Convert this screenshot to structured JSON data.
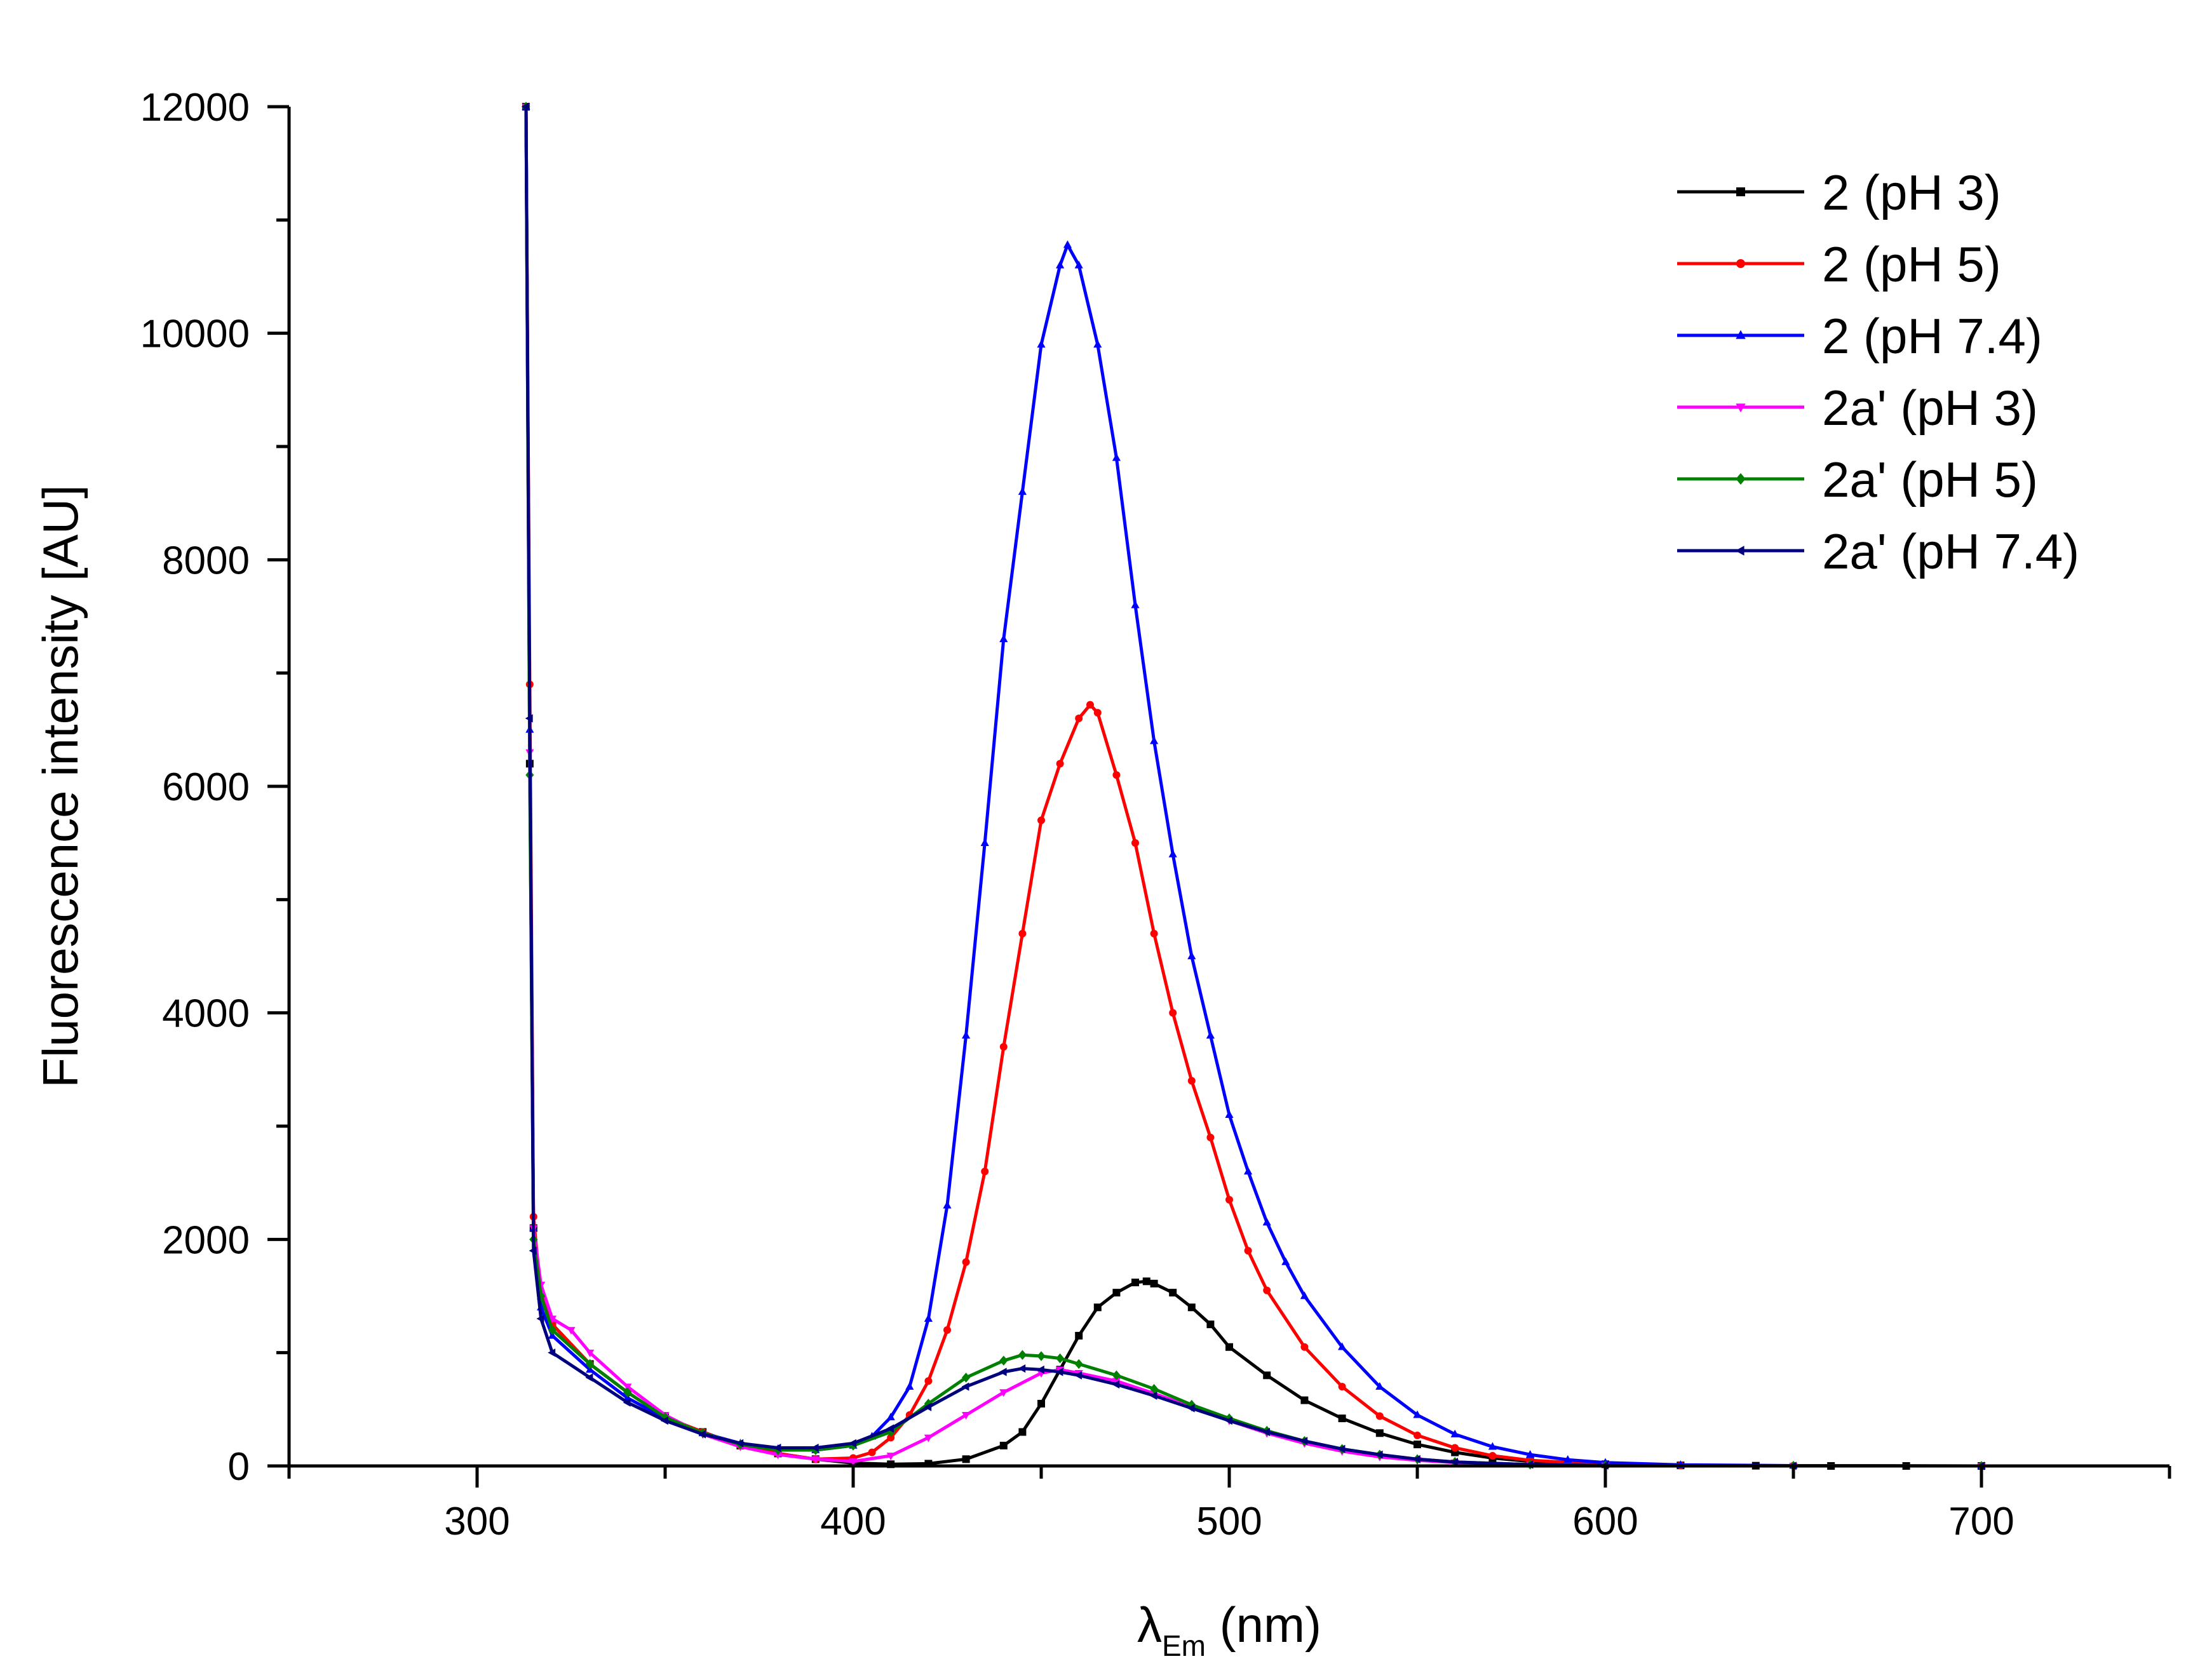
{
  "chart_data": {
    "type": "line",
    "title": "",
    "xlabel": "λ",
    "xlabel_subscript": "Em",
    "xlabel_unit": "(nm)",
    "ylabel": "Fluorescence intensity [AU]",
    "xlim": [
      250,
      750
    ],
    "ylim": [
      0,
      12000
    ],
    "xticks": [
      300,
      400,
      500,
      600,
      700
    ],
    "yticks": [
      0,
      2000,
      4000,
      6000,
      8000,
      10000,
      12000
    ],
    "grid": false,
    "legend_position": "top-right",
    "series": [
      {
        "name": "2 (pH 3)",
        "color": "#000000",
        "marker": "square",
        "x": [
          313,
          314,
          315,
          317,
          320,
          330,
          340,
          350,
          360,
          370,
          380,
          390,
          400,
          410,
          420,
          430,
          440,
          445,
          450,
          455,
          460,
          465,
          470,
          475,
          478,
          480,
          485,
          490,
          495,
          500,
          510,
          520,
          530,
          540,
          550,
          560,
          570,
          580,
          600,
          620,
          640,
          660,
          680,
          700
        ],
        "y": [
          12000,
          6200,
          2100,
          1500,
          1250,
          900,
          650,
          430,
          300,
          180,
          110,
          60,
          25,
          15,
          20,
          60,
          180,
          300,
          550,
          850,
          1150,
          1400,
          1530,
          1620,
          1630,
          1610,
          1530,
          1400,
          1250,
          1050,
          800,
          580,
          420,
          290,
          190,
          120,
          70,
          40,
          15,
          5,
          2,
          0,
          0,
          0
        ]
      },
      {
        "name": "2 (pH 5)",
        "color": "#ff0000",
        "marker": "circle",
        "x": [
          313,
          314,
          315,
          317,
          320,
          330,
          340,
          350,
          360,
          370,
          380,
          390,
          400,
          405,
          410,
          415,
          420,
          425,
          430,
          435,
          440,
          445,
          450,
          455,
          460,
          463,
          465,
          470,
          475,
          480,
          485,
          490,
          495,
          500,
          505,
          510,
          520,
          530,
          540,
          550,
          560,
          570,
          580,
          600,
          620,
          650,
          700
        ],
        "y": [
          12000,
          6900,
          2200,
          1500,
          1250,
          900,
          650,
          430,
          300,
          180,
          110,
          60,
          70,
          120,
          250,
          450,
          750,
          1200,
          1800,
          2600,
          3700,
          4700,
          5700,
          6200,
          6600,
          6720,
          6650,
          6100,
          5500,
          4700,
          4000,
          3400,
          2900,
          2350,
          1900,
          1550,
          1050,
          700,
          440,
          270,
          160,
          90,
          50,
          15,
          5,
          2,
          0
        ]
      },
      {
        "name": "2 (pH 7.4)",
        "color": "#0000ff",
        "marker": "triangle-up",
        "x": [
          313,
          314,
          315,
          317,
          320,
          330,
          340,
          350,
          360,
          370,
          380,
          390,
          400,
          405,
          410,
          415,
          420,
          425,
          430,
          435,
          440,
          445,
          450,
          455,
          457,
          460,
          465,
          470,
          475,
          480,
          485,
          490,
          495,
          500,
          505,
          510,
          515,
          520,
          530,
          540,
          550,
          560,
          570,
          580,
          590,
          600,
          620,
          650,
          700
        ],
        "y": [
          12000,
          6500,
          2100,
          1400,
          1150,
          850,
          600,
          420,
          290,
          200,
          150,
          140,
          180,
          260,
          430,
          700,
          1300,
          2300,
          3800,
          5500,
          7300,
          8600,
          9900,
          10600,
          10780,
          10600,
          9900,
          8900,
          7600,
          6400,
          5400,
          4500,
          3800,
          3100,
          2600,
          2150,
          1800,
          1500,
          1050,
          700,
          450,
          280,
          170,
          100,
          55,
          30,
          10,
          3,
          0
        ]
      },
      {
        "name": "2a' (pH 3)",
        "color": "#ff00ff",
        "marker": "triangle-down",
        "x": [
          313,
          314,
          315,
          317,
          320,
          325,
          330,
          340,
          350,
          360,
          370,
          380,
          390,
          400,
          410,
          420,
          430,
          440,
          450,
          455,
          460,
          470,
          480,
          490,
          500,
          510,
          520,
          530,
          540,
          550,
          560,
          580,
          600,
          650,
          700
        ],
        "y": [
          12000,
          6300,
          2100,
          1600,
          1300,
          1200,
          1000,
          700,
          450,
          280,
          170,
          100,
          60,
          40,
          90,
          250,
          450,
          650,
          820,
          850,
          820,
          750,
          640,
          520,
          400,
          290,
          200,
          130,
          80,
          50,
          30,
          10,
          4,
          1,
          0
        ]
      },
      {
        "name": "2a' (pH 5)",
        "color": "#008000",
        "marker": "diamond",
        "x": [
          313,
          314,
          315,
          317,
          320,
          330,
          340,
          350,
          360,
          370,
          380,
          390,
          400,
          410,
          420,
          430,
          440,
          445,
          450,
          455,
          460,
          470,
          480,
          490,
          500,
          510,
          520,
          530,
          540,
          550,
          560,
          580,
          600,
          650,
          700
        ],
        "y": [
          12000,
          6100,
          2000,
          1500,
          1200,
          900,
          650,
          430,
          290,
          190,
          140,
          140,
          180,
          300,
          550,
          780,
          930,
          980,
          970,
          950,
          900,
          800,
          680,
          540,
          420,
          310,
          220,
          150,
          100,
          60,
          35,
          12,
          4,
          1,
          0
        ]
      },
      {
        "name": "2a' (pH 7.4)",
        "color": "#00007f",
        "marker": "triangle-left",
        "x": [
          313,
          314,
          315,
          317,
          320,
          330,
          340,
          350,
          360,
          370,
          380,
          390,
          400,
          410,
          420,
          430,
          440,
          445,
          450,
          455,
          460,
          470,
          480,
          490,
          500,
          510,
          520,
          530,
          540,
          550,
          560,
          580,
          600,
          650,
          700
        ],
        "y": [
          12000,
          6600,
          1900,
          1300,
          1000,
          780,
          560,
          400,
          280,
          200,
          160,
          160,
          200,
          330,
          520,
          700,
          830,
          860,
          850,
          830,
          800,
          720,
          620,
          510,
          400,
          300,
          220,
          150,
          100,
          60,
          35,
          12,
          4,
          1,
          0
        ]
      }
    ]
  }
}
